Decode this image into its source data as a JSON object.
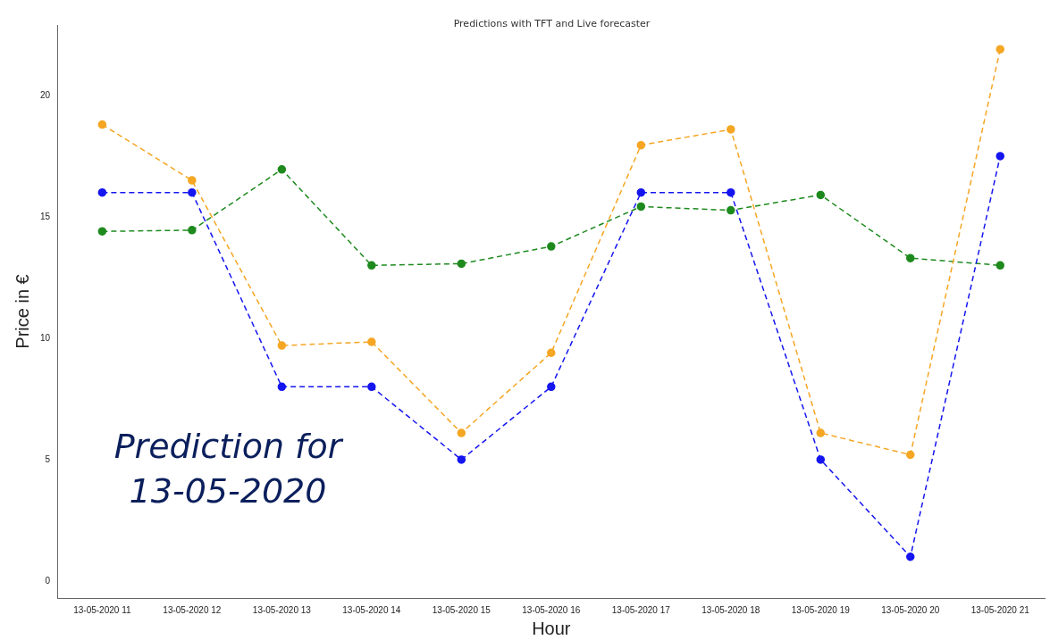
{
  "chart_data": {
    "type": "line",
    "title": "Predictions with TFT and Live forecaster",
    "xlabel": "Hour",
    "ylabel": "Price in €",
    "annotations": [
      "Prediction for 13-05-2020"
    ],
    "categories": [
      "13-05-2020 11",
      "13-05-2020 12",
      "13-05-2020 13",
      "13-05-2020 14",
      "13-05-2020 15",
      "13-05-2020 16",
      "13-05-2020 17",
      "13-05-2020 18",
      "13-05-2020 19",
      "13-05-2020 20",
      "13-05-2020 21"
    ],
    "ylim": [
      -0.7,
      22.9
    ],
    "yticks": [
      0,
      5,
      10,
      15,
      20
    ],
    "series": [
      {
        "color": "#f5a623",
        "values": [
          18.8,
          16.5,
          9.7,
          9.85,
          6.1,
          9.4,
          17.95,
          18.6,
          6.1,
          5.2,
          21.9
        ]
      },
      {
        "color": "#1515f0",
        "values": [
          16,
          16,
          8,
          8,
          5,
          8,
          16,
          16,
          5,
          1,
          17.5
        ]
      },
      {
        "color": "#1e8a1e",
        "values": [
          14.4,
          14.45,
          16.95,
          13.0,
          13.07,
          13.78,
          15.42,
          15.27,
          15.9,
          13.3,
          13.0
        ]
      }
    ],
    "grid": false,
    "legend": false,
    "marker": "circle",
    "line_style": "dashed"
  }
}
